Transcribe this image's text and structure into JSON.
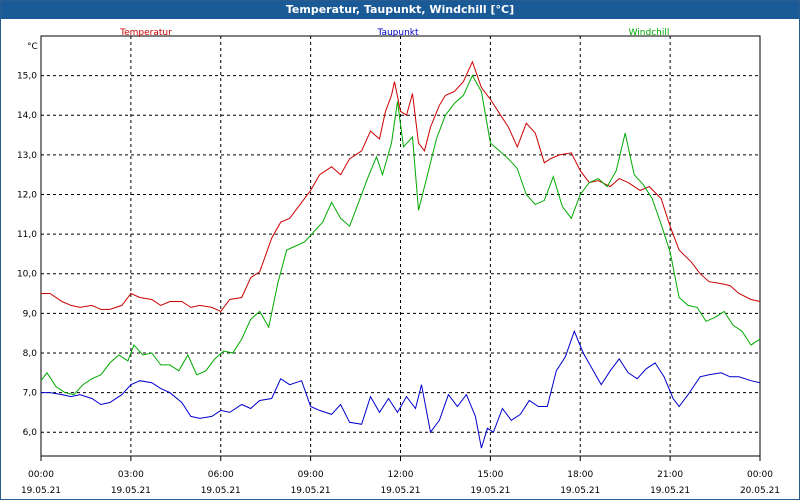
{
  "window": {
    "title": "Temperatur, Taupunkt, Windchill [°C]"
  },
  "chart_data": {
    "type": "line",
    "title": "Temperatur, Taupunkt, Windchill [°C]",
    "ylabel": "°C",
    "ylim": [
      5.4,
      16.0
    ],
    "xlim": [
      0,
      24
    ],
    "grid": true,
    "legend": "top",
    "yticks": [
      {
        "value": 6.0,
        "label": "6,0"
      },
      {
        "value": 7.0,
        "label": "7,0"
      },
      {
        "value": 8.0,
        "label": "8,0"
      },
      {
        "value": 9.0,
        "label": "9,0"
      },
      {
        "value": 10.0,
        "label": "10,0"
      },
      {
        "value": 11.0,
        "label": "11,0"
      },
      {
        "value": 12.0,
        "label": "12,0"
      },
      {
        "value": 13.0,
        "label": "13,0"
      },
      {
        "value": 14.0,
        "label": "14,0"
      },
      {
        "value": 15.0,
        "label": "15,0"
      }
    ],
    "xticks": [
      {
        "value": 0,
        "time": "00:00",
        "date": "19.05.21"
      },
      {
        "value": 3,
        "time": "03:00",
        "date": "19.05.21"
      },
      {
        "value": 6,
        "time": "06:00",
        "date": "19.05.21"
      },
      {
        "value": 9,
        "time": "09:00",
        "date": "19.05.21"
      },
      {
        "value": 12,
        "time": "12:00",
        "date": "19.05.21"
      },
      {
        "value": 15,
        "time": "15:00",
        "date": "19.05.21"
      },
      {
        "value": 18,
        "time": "18:00",
        "date": "19.05.21"
      },
      {
        "value": 21,
        "time": "21:00",
        "date": "19.05.21"
      },
      {
        "value": 24,
        "time": "00:00",
        "date": "20.05.21"
      }
    ],
    "series": [
      {
        "name": "Temperatur",
        "color": "#cc0000",
        "points": [
          [
            0,
            9.5
          ],
          [
            0.3,
            9.5
          ],
          [
            0.7,
            9.3
          ],
          [
            1.0,
            9.2
          ],
          [
            1.3,
            9.15
          ],
          [
            1.7,
            9.2
          ],
          [
            2.0,
            9.1
          ],
          [
            2.3,
            9.1
          ],
          [
            2.7,
            9.2
          ],
          [
            3.0,
            9.5
          ],
          [
            3.3,
            9.4
          ],
          [
            3.7,
            9.35
          ],
          [
            4.0,
            9.2
          ],
          [
            4.3,
            9.3
          ],
          [
            4.7,
            9.3
          ],
          [
            5.0,
            9.15
          ],
          [
            5.3,
            9.2
          ],
          [
            5.7,
            9.15
          ],
          [
            6.0,
            9.05
          ],
          [
            6.3,
            9.35
          ],
          [
            6.7,
            9.4
          ],
          [
            7.0,
            9.9
          ],
          [
            7.3,
            10.05
          ],
          [
            7.7,
            10.9
          ],
          [
            8.0,
            11.3
          ],
          [
            8.3,
            11.4
          ],
          [
            8.7,
            11.8
          ],
          [
            9.0,
            12.1
          ],
          [
            9.3,
            12.5
          ],
          [
            9.7,
            12.7
          ],
          [
            10.0,
            12.5
          ],
          [
            10.3,
            12.9
          ],
          [
            10.7,
            13.1
          ],
          [
            11.0,
            13.6
          ],
          [
            11.3,
            13.4
          ],
          [
            11.5,
            14.1
          ],
          [
            11.7,
            14.5
          ],
          [
            11.8,
            14.85
          ],
          [
            12.0,
            14.1
          ],
          [
            12.2,
            14.0
          ],
          [
            12.4,
            14.55
          ],
          [
            12.6,
            13.3
          ],
          [
            12.8,
            13.1
          ],
          [
            13.0,
            13.7
          ],
          [
            13.3,
            14.25
          ],
          [
            13.5,
            14.5
          ],
          [
            13.8,
            14.6
          ],
          [
            14.1,
            14.85
          ],
          [
            14.4,
            15.35
          ],
          [
            14.7,
            14.7
          ],
          [
            15.0,
            14.4
          ],
          [
            15.3,
            14.05
          ],
          [
            15.6,
            13.7
          ],
          [
            15.9,
            13.2
          ],
          [
            16.2,
            13.8
          ],
          [
            16.5,
            13.55
          ],
          [
            16.8,
            12.8
          ],
          [
            17.0,
            12.9
          ],
          [
            17.3,
            13.0
          ],
          [
            17.7,
            13.05
          ],
          [
            18.0,
            12.6
          ],
          [
            18.3,
            12.3
          ],
          [
            18.6,
            12.35
          ],
          [
            19.0,
            12.2
          ],
          [
            19.3,
            12.4
          ],
          [
            19.6,
            12.3
          ],
          [
            20.0,
            12.1
          ],
          [
            20.3,
            12.2
          ],
          [
            20.7,
            11.9
          ],
          [
            21.0,
            11.2
          ],
          [
            21.3,
            10.6
          ],
          [
            21.7,
            10.3
          ],
          [
            22.0,
            10.0
          ],
          [
            22.3,
            9.8
          ],
          [
            22.7,
            9.75
          ],
          [
            23.0,
            9.7
          ],
          [
            23.3,
            9.5
          ],
          [
            23.7,
            9.35
          ],
          [
            24.0,
            9.3
          ]
        ]
      },
      {
        "name": "Taupunkt",
        "color": "#0000cc",
        "points": [
          [
            0,
            7.0
          ],
          [
            0.3,
            7.0
          ],
          [
            0.7,
            6.95
          ],
          [
            1.0,
            6.9
          ],
          [
            1.3,
            6.95
          ],
          [
            1.7,
            6.85
          ],
          [
            2.0,
            6.7
          ],
          [
            2.3,
            6.75
          ],
          [
            2.7,
            6.95
          ],
          [
            3.0,
            7.2
          ],
          [
            3.3,
            7.3
          ],
          [
            3.7,
            7.25
          ],
          [
            4.0,
            7.1
          ],
          [
            4.3,
            7.0
          ],
          [
            4.7,
            6.75
          ],
          [
            5.0,
            6.4
          ],
          [
            5.3,
            6.35
          ],
          [
            5.7,
            6.4
          ],
          [
            6.0,
            6.55
          ],
          [
            6.3,
            6.5
          ],
          [
            6.7,
            6.7
          ],
          [
            7.0,
            6.6
          ],
          [
            7.3,
            6.8
          ],
          [
            7.7,
            6.85
          ],
          [
            8.0,
            7.35
          ],
          [
            8.3,
            7.2
          ],
          [
            8.7,
            7.3
          ],
          [
            9.0,
            6.65
          ],
          [
            9.3,
            6.55
          ],
          [
            9.7,
            6.45
          ],
          [
            10.0,
            6.7
          ],
          [
            10.3,
            6.25
          ],
          [
            10.7,
            6.2
          ],
          [
            11.0,
            6.9
          ],
          [
            11.3,
            6.5
          ],
          [
            11.6,
            6.85
          ],
          [
            11.9,
            6.5
          ],
          [
            12.2,
            6.9
          ],
          [
            12.5,
            6.6
          ],
          [
            12.7,
            7.2
          ],
          [
            13.0,
            6.0
          ],
          [
            13.3,
            6.3
          ],
          [
            13.6,
            6.95
          ],
          [
            13.9,
            6.65
          ],
          [
            14.2,
            6.95
          ],
          [
            14.5,
            6.4
          ],
          [
            14.7,
            5.6
          ],
          [
            14.9,
            6.1
          ],
          [
            15.1,
            6.0
          ],
          [
            15.4,
            6.6
          ],
          [
            15.7,
            6.3
          ],
          [
            16.0,
            6.45
          ],
          [
            16.3,
            6.8
          ],
          [
            16.6,
            6.65
          ],
          [
            16.9,
            6.65
          ],
          [
            17.2,
            7.55
          ],
          [
            17.5,
            7.9
          ],
          [
            17.8,
            8.55
          ],
          [
            18.1,
            8.0
          ],
          [
            18.4,
            7.6
          ],
          [
            18.7,
            7.2
          ],
          [
            19.0,
            7.55
          ],
          [
            19.3,
            7.85
          ],
          [
            19.6,
            7.5
          ],
          [
            19.9,
            7.35
          ],
          [
            20.2,
            7.6
          ],
          [
            20.5,
            7.75
          ],
          [
            20.8,
            7.4
          ],
          [
            21.1,
            6.85
          ],
          [
            21.3,
            6.65
          ],
          [
            21.6,
            6.95
          ],
          [
            22.0,
            7.4
          ],
          [
            22.3,
            7.45
          ],
          [
            22.7,
            7.5
          ],
          [
            23.0,
            7.4
          ],
          [
            23.3,
            7.4
          ],
          [
            23.7,
            7.3
          ],
          [
            24.0,
            7.25
          ]
        ]
      },
      {
        "name": "Windchill",
        "color": "#00aa00",
        "points": [
          [
            0,
            7.3
          ],
          [
            0.2,
            7.5
          ],
          [
            0.5,
            7.15
          ],
          [
            0.8,
            7.0
          ],
          [
            1.1,
            6.95
          ],
          [
            1.4,
            7.2
          ],
          [
            1.7,
            7.35
          ],
          [
            2.0,
            7.45
          ],
          [
            2.3,
            7.75
          ],
          [
            2.6,
            7.95
          ],
          [
            2.9,
            7.8
          ],
          [
            3.1,
            8.2
          ],
          [
            3.4,
            7.95
          ],
          [
            3.7,
            8.0
          ],
          [
            4.0,
            7.7
          ],
          [
            4.3,
            7.7
          ],
          [
            4.6,
            7.55
          ],
          [
            4.9,
            7.95
          ],
          [
            5.2,
            7.45
          ],
          [
            5.5,
            7.55
          ],
          [
            5.8,
            7.85
          ],
          [
            6.1,
            8.05
          ],
          [
            6.4,
            8.0
          ],
          [
            6.7,
            8.35
          ],
          [
            7.0,
            8.85
          ],
          [
            7.3,
            9.05
          ],
          [
            7.6,
            8.65
          ],
          [
            7.9,
            9.75
          ],
          [
            8.2,
            10.6
          ],
          [
            8.5,
            10.7
          ],
          [
            8.8,
            10.8
          ],
          [
            9.1,
            11.05
          ],
          [
            9.4,
            11.3
          ],
          [
            9.7,
            11.8
          ],
          [
            10.0,
            11.4
          ],
          [
            10.3,
            11.2
          ],
          [
            10.6,
            11.8
          ],
          [
            10.9,
            12.4
          ],
          [
            11.2,
            12.95
          ],
          [
            11.4,
            12.5
          ],
          [
            11.7,
            13.3
          ],
          [
            11.9,
            14.35
          ],
          [
            12.1,
            13.2
          ],
          [
            12.4,
            13.45
          ],
          [
            12.6,
            11.6
          ],
          [
            12.9,
            12.5
          ],
          [
            13.2,
            13.4
          ],
          [
            13.5,
            14.0
          ],
          [
            13.8,
            14.3
          ],
          [
            14.1,
            14.5
          ],
          [
            14.4,
            15.0
          ],
          [
            14.7,
            14.6
          ],
          [
            15.0,
            13.3
          ],
          [
            15.3,
            13.1
          ],
          [
            15.6,
            12.9
          ],
          [
            15.9,
            12.65
          ],
          [
            16.2,
            12.0
          ],
          [
            16.5,
            11.75
          ],
          [
            16.8,
            11.85
          ],
          [
            17.1,
            12.45
          ],
          [
            17.4,
            11.7
          ],
          [
            17.7,
            11.4
          ],
          [
            18.0,
            12.0
          ],
          [
            18.3,
            12.3
          ],
          [
            18.6,
            12.4
          ],
          [
            18.9,
            12.2
          ],
          [
            19.2,
            12.6
          ],
          [
            19.5,
            13.55
          ],
          [
            19.8,
            12.5
          ],
          [
            20.1,
            12.25
          ],
          [
            20.4,
            11.9
          ],
          [
            20.7,
            11.25
          ],
          [
            21.0,
            10.55
          ],
          [
            21.3,
            9.4
          ],
          [
            21.6,
            9.2
          ],
          [
            21.9,
            9.15
          ],
          [
            22.2,
            8.8
          ],
          [
            22.5,
            8.9
          ],
          [
            22.8,
            9.05
          ],
          [
            23.1,
            8.7
          ],
          [
            23.4,
            8.55
          ],
          [
            23.7,
            8.2
          ],
          [
            24.0,
            8.35
          ]
        ]
      }
    ]
  }
}
